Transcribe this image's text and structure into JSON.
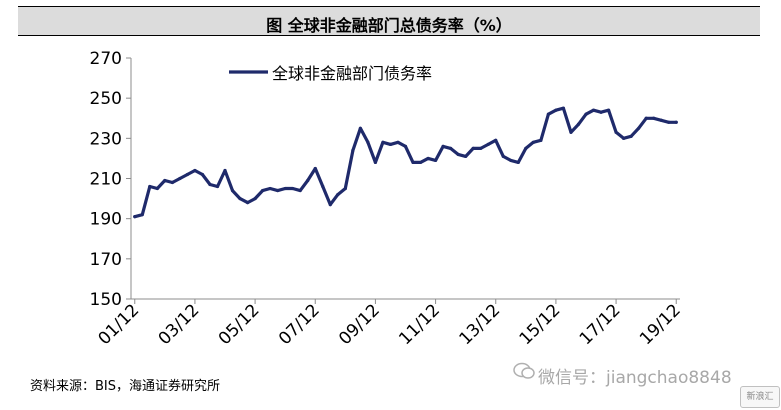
{
  "header": {
    "title": "图  全球非金融部门总债务率（%）"
  },
  "footer": {
    "source": "资料来源：BIS，海通证券研究所"
  },
  "overlay": {
    "watermark": "微信号：jiangchao8848",
    "badge": "新浪汇"
  },
  "colors": {
    "line": "#1f2a6b",
    "axis": "#8c8c8c",
    "title_bg": "#dcdcdc"
  },
  "chart_data": {
    "type": "line",
    "title": "",
    "xlabel": "",
    "ylabel": "",
    "ylim": [
      150,
      270
    ],
    "y_ticks": [
      150,
      170,
      190,
      210,
      230,
      250,
      270
    ],
    "x_tick_labels": [
      "01/12",
      "03/12",
      "05/12",
      "07/12",
      "09/12",
      "11/12",
      "13/12",
      "15/12",
      "17/12",
      "19/12"
    ],
    "legend": "top-center",
    "grid": false,
    "series": [
      {
        "name": "全球非金融部门债务率",
        "x": [
          "2001Q4",
          "2002Q1",
          "2002Q2",
          "2002Q3",
          "2002Q4",
          "2003Q1",
          "2003Q2",
          "2003Q3",
          "2003Q4",
          "2004Q1",
          "2004Q2",
          "2004Q3",
          "2004Q4",
          "2005Q1",
          "2005Q2",
          "2005Q3",
          "2005Q4",
          "2006Q1",
          "2006Q2",
          "2006Q3",
          "2006Q4",
          "2007Q1",
          "2007Q2",
          "2007Q3",
          "2007Q4",
          "2008Q1",
          "2008Q2",
          "2008Q3",
          "2008Q4",
          "2009Q1",
          "2009Q2",
          "2009Q3",
          "2009Q4",
          "2010Q1",
          "2010Q2",
          "2010Q3",
          "2010Q4",
          "2011Q1",
          "2011Q2",
          "2011Q3",
          "2011Q4",
          "2012Q1",
          "2012Q2",
          "2012Q3",
          "2012Q4",
          "2013Q1",
          "2013Q2",
          "2013Q3",
          "2013Q4",
          "2014Q1",
          "2014Q2",
          "2014Q3",
          "2014Q4",
          "2015Q1",
          "2015Q2",
          "2015Q3",
          "2015Q4",
          "2016Q1",
          "2016Q2",
          "2016Q3",
          "2016Q4",
          "2017Q1",
          "2017Q2",
          "2017Q3",
          "2017Q4",
          "2018Q1",
          "2018Q2",
          "2018Q3",
          "2018Q4",
          "2019Q1",
          "2019Q2",
          "2019Q3",
          "2019Q4"
        ],
        "values": [
          191,
          192,
          206,
          205,
          209,
          208,
          210,
          212,
          214,
          212,
          207,
          206,
          214,
          204,
          200,
          198,
          200,
          204,
          205,
          204,
          205,
          205,
          204,
          209,
          215,
          206,
          197,
          202,
          205,
          224,
          235,
          228,
          218,
          228,
          227,
          228,
          226,
          218,
          218,
          220,
          219,
          226,
          225,
          222,
          221,
          225,
          225,
          227,
          229,
          221,
          219,
          218,
          225,
          228,
          229,
          242,
          244,
          245,
          233,
          237,
          242,
          244,
          243,
          244,
          233,
          230,
          231,
          235,
          240,
          240,
          239,
          238,
          238
        ]
      }
    ]
  }
}
